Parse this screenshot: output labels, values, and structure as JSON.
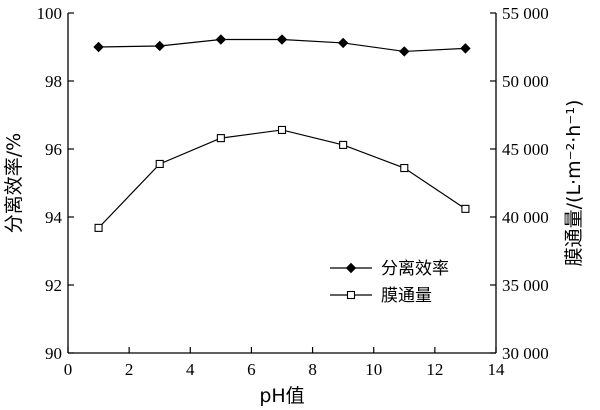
{
  "chart_data": {
    "type": "line",
    "title": "",
    "xlabel": "pH值",
    "ylabel_left": "分离效率/%",
    "ylabel_right": "膜通量/(L·m⁻²·h⁻¹)",
    "xlim": [
      0,
      14
    ],
    "xticks": [
      0,
      2,
      4,
      6,
      8,
      10,
      12,
      14
    ],
    "xtick_labels": [
      "0",
      "2",
      "4",
      "6",
      "8",
      "10",
      "12",
      "14"
    ],
    "ylim_left": [
      90,
      100
    ],
    "yticks_left": [
      90,
      92,
      94,
      96,
      98,
      100
    ],
    "ytick_labels_left": [
      "90",
      "92",
      "94",
      "96",
      "98",
      "100"
    ],
    "ylim_right": [
      30000,
      55000
    ],
    "yticks_right": [
      30000,
      35000,
      40000,
      45000,
      50000,
      55000
    ],
    "ytick_labels_right": [
      "30 000",
      "35 000",
      "40 000",
      "45 000",
      "50 000",
      "55 000"
    ],
    "grid": false,
    "legend_position": "center-right",
    "series": [
      {
        "name": "分离效率",
        "axis": "left",
        "marker": "filled-diamond",
        "x": [
          1,
          3,
          5,
          7,
          9,
          11,
          13
        ],
        "values": [
          99.0,
          99.03,
          99.22,
          99.22,
          99.12,
          98.87,
          98.96
        ]
      },
      {
        "name": "膜通量",
        "axis": "right",
        "marker": "open-square",
        "x": [
          1,
          3,
          5,
          7,
          9,
          11,
          13
        ],
        "values": [
          39200,
          43900,
          45800,
          46400,
          45300,
          43600,
          40600
        ]
      }
    ]
  }
}
